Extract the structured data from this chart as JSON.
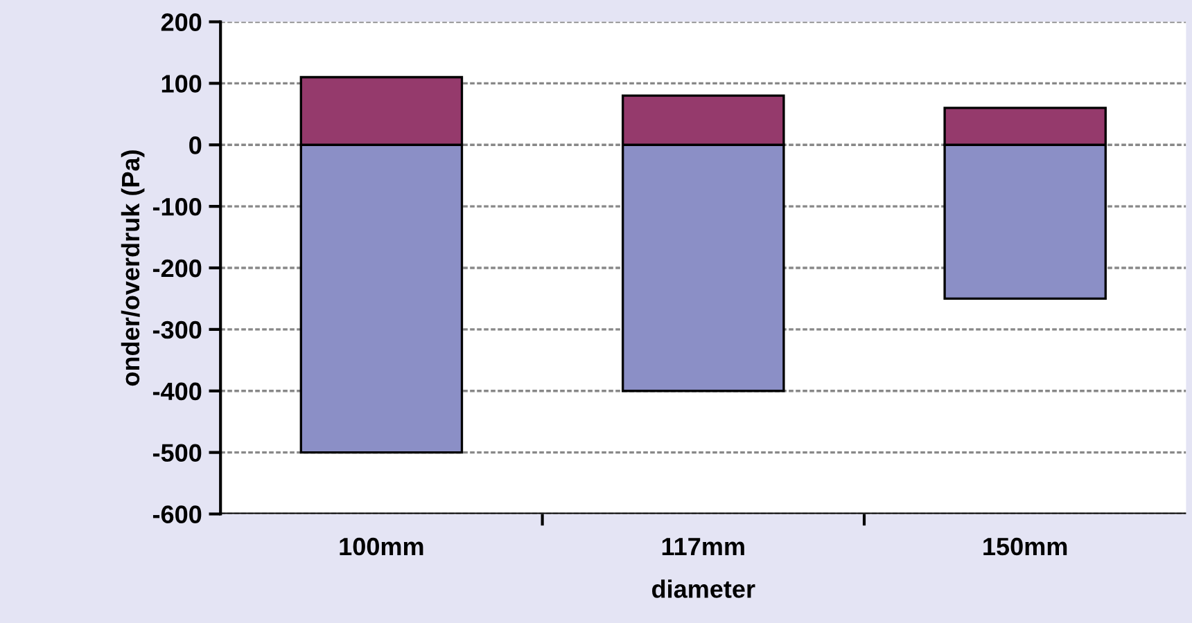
{
  "chart_data": {
    "type": "bar",
    "stacked": true,
    "xlabel": "diameter",
    "ylabel": "onder/overdruk (Pa)",
    "categories": [
      "100mm",
      "117mm",
      "150mm"
    ],
    "series": [
      {
        "color": "#8b8fc6",
        "values": [
          -500,
          -400,
          -250
        ]
      },
      {
        "color": "#953a6c",
        "values": [
          110,
          80,
          60
        ]
      }
    ],
    "ylim": [
      -600,
      200
    ],
    "yticks": [
      -600,
      -500,
      -400,
      -300,
      -200,
      -100,
      0,
      100,
      200
    ],
    "grid": "y"
  }
}
